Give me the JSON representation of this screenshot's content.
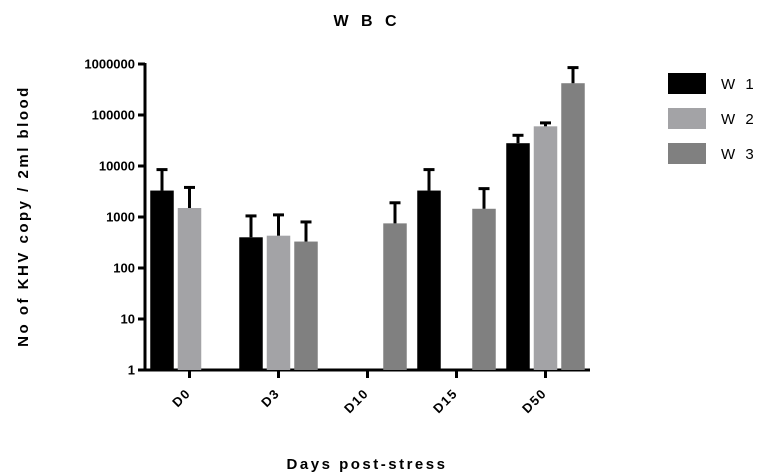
{
  "chart_data": {
    "type": "bar",
    "title": "W B C",
    "xlabel": "Days post-stress",
    "ylabel": "No of KHV copy / 2ml blood",
    "yscale": "log",
    "ylim": [
      1,
      1000000
    ],
    "yticks": [
      {
        "value": 1,
        "label": "1"
      },
      {
        "value": 10,
        "label": "10"
      },
      {
        "value": 100,
        "label": "100"
      },
      {
        "value": 1000,
        "label": "1000"
      },
      {
        "value": 10000,
        "label": "10000"
      },
      {
        "value": 100000,
        "label": "100000"
      },
      {
        "value": 1000000,
        "label": "1000000"
      }
    ],
    "categories": [
      "D0",
      "D3",
      "D10",
      "D15",
      "D50"
    ],
    "legend_position": "right",
    "grid": false,
    "error_bars": true,
    "series": [
      {
        "name": "W 1",
        "color": "#000000",
        "values": [
          3300,
          400,
          null,
          3300,
          28000
        ],
        "errors": [
          8500,
          1050,
          null,
          8500,
          40000
        ]
      },
      {
        "name": "W 2",
        "color": "#a3a3a6",
        "values": [
          1500,
          430,
          null,
          null,
          60000
        ],
        "errors": [
          3800,
          1100,
          null,
          null,
          70000
        ]
      },
      {
        "name": "W 3",
        "color": "#808080",
        "values": [
          null,
          330,
          750,
          1450,
          420000
        ],
        "errors": [
          null,
          800,
          1900,
          3600,
          850000
        ]
      }
    ]
  }
}
